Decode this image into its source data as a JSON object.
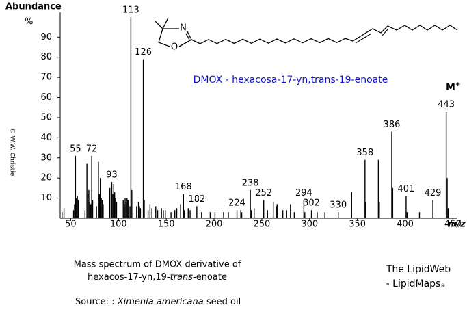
{
  "chart_data": {
    "type": "spectrum",
    "y_title": "Abundance",
    "y_unit": "%",
    "x_title": "m/z",
    "annotation": "DMOX - hexacosa-17-yn,trans-19-enoate",
    "molecular_ion": {
      "text": "M",
      "sup": "+"
    },
    "structure_atoms": [
      "N",
      "O"
    ],
    "caption": {
      "line1": "Mass spectrum of DMOX derivative of",
      "line2a": "hexacos-17-yn,19-",
      "line2b": "trans",
      "line2c": "-enoate"
    },
    "source": {
      "prefix": "Source: :",
      "species": "Ximenia americana",
      "suffix": "seed oil"
    },
    "credit": {
      "line1": "The LipidWeb",
      "line2": "- LipidMaps",
      "mark": "®"
    },
    "copyright": "© W.W. Christie",
    "color": "#000000",
    "xlim": [
      39,
      454
    ],
    "ylim": [
      0,
      102
    ],
    "xticks": [
      50,
      100,
      150,
      200,
      250,
      300,
      350,
      400,
      450
    ],
    "yticks": [
      10,
      20,
      30,
      40,
      50,
      60,
      70,
      80,
      90
    ],
    "x": [
      41,
      43,
      53,
      54,
      55,
      56,
      57,
      58,
      65,
      67,
      68,
      69,
      70,
      71,
      72,
      73,
      77,
      79,
      80,
      81,
      82,
      83,
      84,
      91,
      93,
      94,
      95,
      96,
      97,
      98,
      105,
      106,
      107,
      108,
      109,
      110,
      112,
      113,
      114,
      119,
      121,
      122,
      123,
      126,
      127,
      131,
      133,
      135,
      139,
      141,
      145,
      147,
      149,
      155,
      159,
      161,
      165,
      168,
      169,
      173,
      175,
      182,
      187,
      196,
      201,
      210,
      215,
      224,
      228,
      229,
      238,
      239,
      242,
      252,
      256,
      262,
      265,
      266,
      272,
      276,
      280,
      284,
      294,
      295,
      302,
      308,
      316,
      330,
      344,
      358,
      359,
      372,
      373,
      386,
      387,
      401,
      402,
      415,
      429,
      443,
      444,
      445
    ],
    "values": [
      3,
      5,
      4,
      7,
      31,
      10,
      11,
      9,
      4,
      27,
      12,
      14,
      8,
      7,
      31,
      9,
      6,
      28,
      12,
      20,
      10,
      9,
      7,
      15,
      18,
      12,
      17,
      13,
      10,
      8,
      9,
      7,
      10,
      8,
      10,
      9,
      6,
      100,
      14,
      6,
      8,
      6,
      5,
      79,
      9,
      4,
      7,
      5,
      6,
      4,
      5,
      4,
      4,
      3,
      4,
      5,
      7,
      12,
      4,
      5,
      4,
      6,
      3,
      3,
      3,
      3,
      3,
      4,
      4,
      3,
      14,
      4,
      5,
      9,
      4,
      8,
      6,
      7,
      4,
      4,
      7,
      3,
      9,
      3,
      4,
      3,
      3,
      3,
      13,
      29,
      8,
      29,
      8,
      43,
      15,
      11,
      3,
      3,
      9,
      53,
      20,
      5
    ],
    "peak_labels": [
      null,
      null,
      null,
      null,
      "55",
      null,
      null,
      null,
      null,
      null,
      null,
      null,
      null,
      null,
      "72",
      null,
      null,
      null,
      null,
      null,
      null,
      null,
      null,
      null,
      "93",
      null,
      null,
      null,
      null,
      null,
      null,
      null,
      null,
      null,
      null,
      null,
      null,
      "113",
      null,
      null,
      null,
      null,
      null,
      "126",
      null,
      null,
      null,
      null,
      null,
      null,
      null,
      null,
      null,
      null,
      null,
      null,
      null,
      "168",
      null,
      null,
      null,
      "182",
      null,
      null,
      null,
      null,
      null,
      "224",
      null,
      null,
      "238",
      null,
      null,
      "252",
      null,
      null,
      null,
      null,
      null,
      null,
      null,
      null,
      "294",
      null,
      "302",
      null,
      null,
      "330",
      null,
      "358",
      null,
      null,
      null,
      "386",
      null,
      "401",
      null,
      null,
      "429",
      "443",
      null,
      null
    ]
  }
}
